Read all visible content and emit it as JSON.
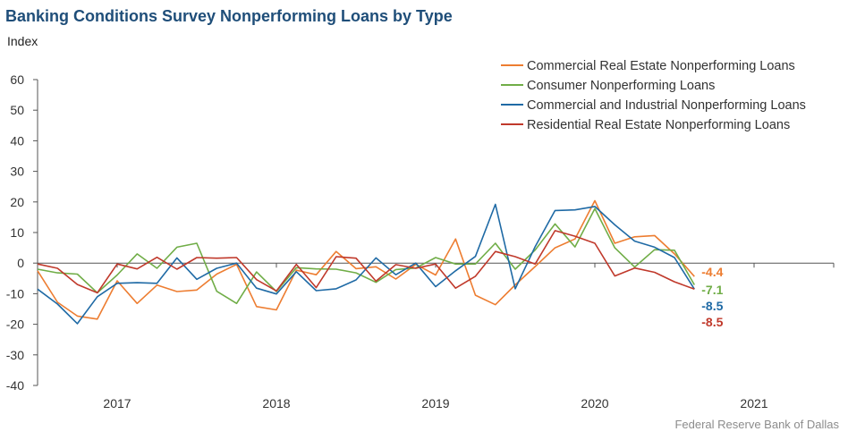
{
  "header": {
    "title": "Banking Conditions Survey Nonperforming Loans by Type",
    "unit_label": "Index"
  },
  "footer": {
    "source": "Federal Reserve Bank of Dallas"
  },
  "chart_data": {
    "type": "line",
    "title": "Banking Conditions Survey Nonperforming Loans by Type",
    "ylabel": "Index",
    "ylim": [
      -40,
      60
    ],
    "yticks": [
      60,
      50,
      40,
      30,
      20,
      10,
      0,
      -10,
      -20,
      -30,
      -40
    ],
    "xlim": [
      2016.5,
      2021.5
    ],
    "year_labels": [
      "2017",
      "2018",
      "2019",
      "2020",
      "2021"
    ],
    "grid": false,
    "legend_position": "top-right",
    "x": [
      2016.5,
      2016.625,
      2016.75,
      2016.875,
      2017.0,
      2017.125,
      2017.25,
      2017.375,
      2017.5,
      2017.625,
      2017.75,
      2017.875,
      2018.0,
      2018.125,
      2018.25,
      2018.375,
      2018.5,
      2018.625,
      2018.75,
      2018.875,
      2019.0,
      2019.125,
      2019.25,
      2019.375,
      2019.5,
      2019.625,
      2019.75,
      2019.875,
      2020.0,
      2020.125,
      2020.25,
      2020.375,
      2020.5,
      2020.625
    ],
    "series": [
      {
        "name": "Commercial Real Estate Nonperforming Loans",
        "color": "#ed7d31",
        "end_label": "-4.4",
        "values": [
          -2.5,
          -12.8,
          -17.3,
          -18.3,
          -5.8,
          -13.2,
          -7.2,
          -9.3,
          -8.8,
          -3.6,
          -0.4,
          -14.2,
          -15.3,
          -2.3,
          -3.8,
          3.8,
          -1.8,
          -1.2,
          -5.2,
          -0.4,
          -3.9,
          7.9,
          -10.5,
          -13.6,
          -7.1,
          -1.1,
          5.0,
          7.9,
          20.4,
          6.5,
          8.6,
          9.0,
          3.0,
          -4.4
        ]
      },
      {
        "name": "Consumer Nonperforming Loans",
        "color": "#70ad47",
        "end_label": "-7.1",
        "values": [
          -2.0,
          -3.2,
          -3.6,
          -9.7,
          -3.9,
          3.0,
          -1.7,
          5.2,
          6.5,
          -9.2,
          -13.2,
          -2.9,
          -9.3,
          -1.5,
          -1.9,
          -2.0,
          -3.2,
          -6.3,
          -2.1,
          -1.6,
          1.8,
          -0.3,
          -0.3,
          6.5,
          -2.0,
          4.3,
          12.8,
          5.3,
          17.8,
          5.0,
          -1.3,
          4.4,
          4.2,
          -7.1
        ]
      },
      {
        "name": "Commercial and Industrial Nonperforming Loans",
        "color": "#1f6aa5",
        "end_label": "-8.5",
        "values": [
          -8.5,
          -13.4,
          -19.8,
          -11.0,
          -6.6,
          -6.4,
          -6.6,
          1.7,
          -5.3,
          -1.7,
          0.0,
          -8.2,
          -10.1,
          -2.8,
          -9.0,
          -8.4,
          -5.5,
          1.7,
          -3.8,
          0.0,
          -7.7,
          -2.5,
          2.2,
          19.2,
          -8.4,
          5.4,
          17.2,
          17.4,
          18.5,
          12.5,
          7.2,
          5.2,
          1.8,
          -8.5
        ]
      },
      {
        "name": "Residential Real Estate Nonperforming Loans",
        "color": "#c0392b",
        "end_label": "-8.5",
        "values": [
          -0.3,
          -1.7,
          -7.0,
          -9.7,
          -0.3,
          -1.9,
          1.9,
          -2.0,
          1.8,
          1.6,
          1.8,
          -5.4,
          -9.1,
          -0.4,
          -8.0,
          2.1,
          1.6,
          -5.9,
          -0.5,
          -1.7,
          -0.3,
          -8.2,
          -4.3,
          3.8,
          2.1,
          -0.3,
          10.6,
          8.8,
          6.5,
          -4.2,
          -1.6,
          -3.0,
          -6.1,
          -8.5
        ]
      }
    ]
  }
}
